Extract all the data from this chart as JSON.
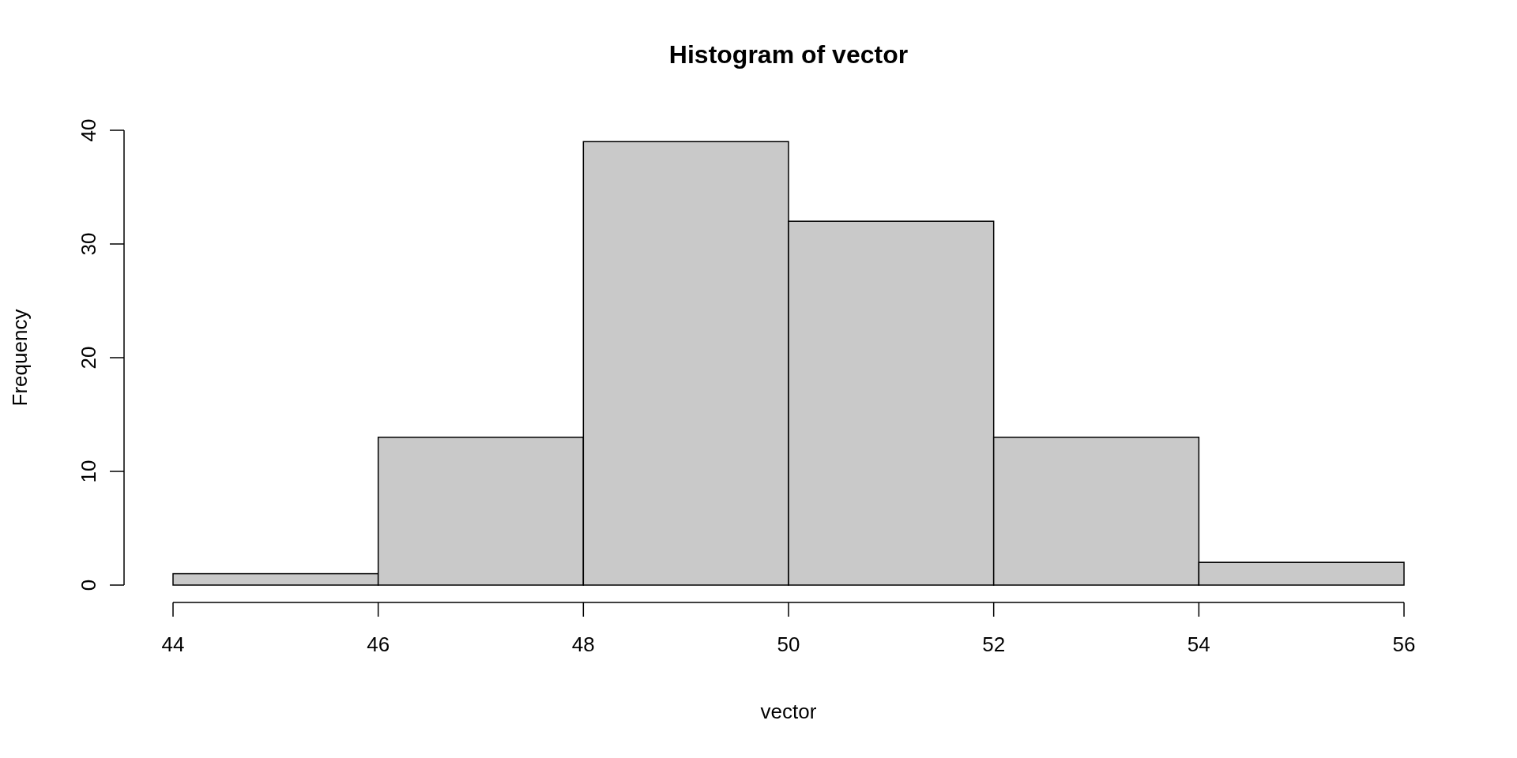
{
  "chart_data": {
    "type": "histogram",
    "title": "Histogram of vector",
    "xlabel": "vector",
    "ylabel": "Frequency",
    "bins": [
      44,
      46,
      48,
      50,
      52,
      54,
      56
    ],
    "values": [
      1,
      13,
      39,
      32,
      13,
      2
    ],
    "color": "#c9c9c9",
    "xlim": [
      44,
      56
    ],
    "xticks": [
      44,
      46,
      48,
      50,
      52,
      54,
      56
    ],
    "ylim": [
      0,
      40
    ],
    "yticks": [
      0,
      10,
      20,
      30,
      40
    ]
  }
}
